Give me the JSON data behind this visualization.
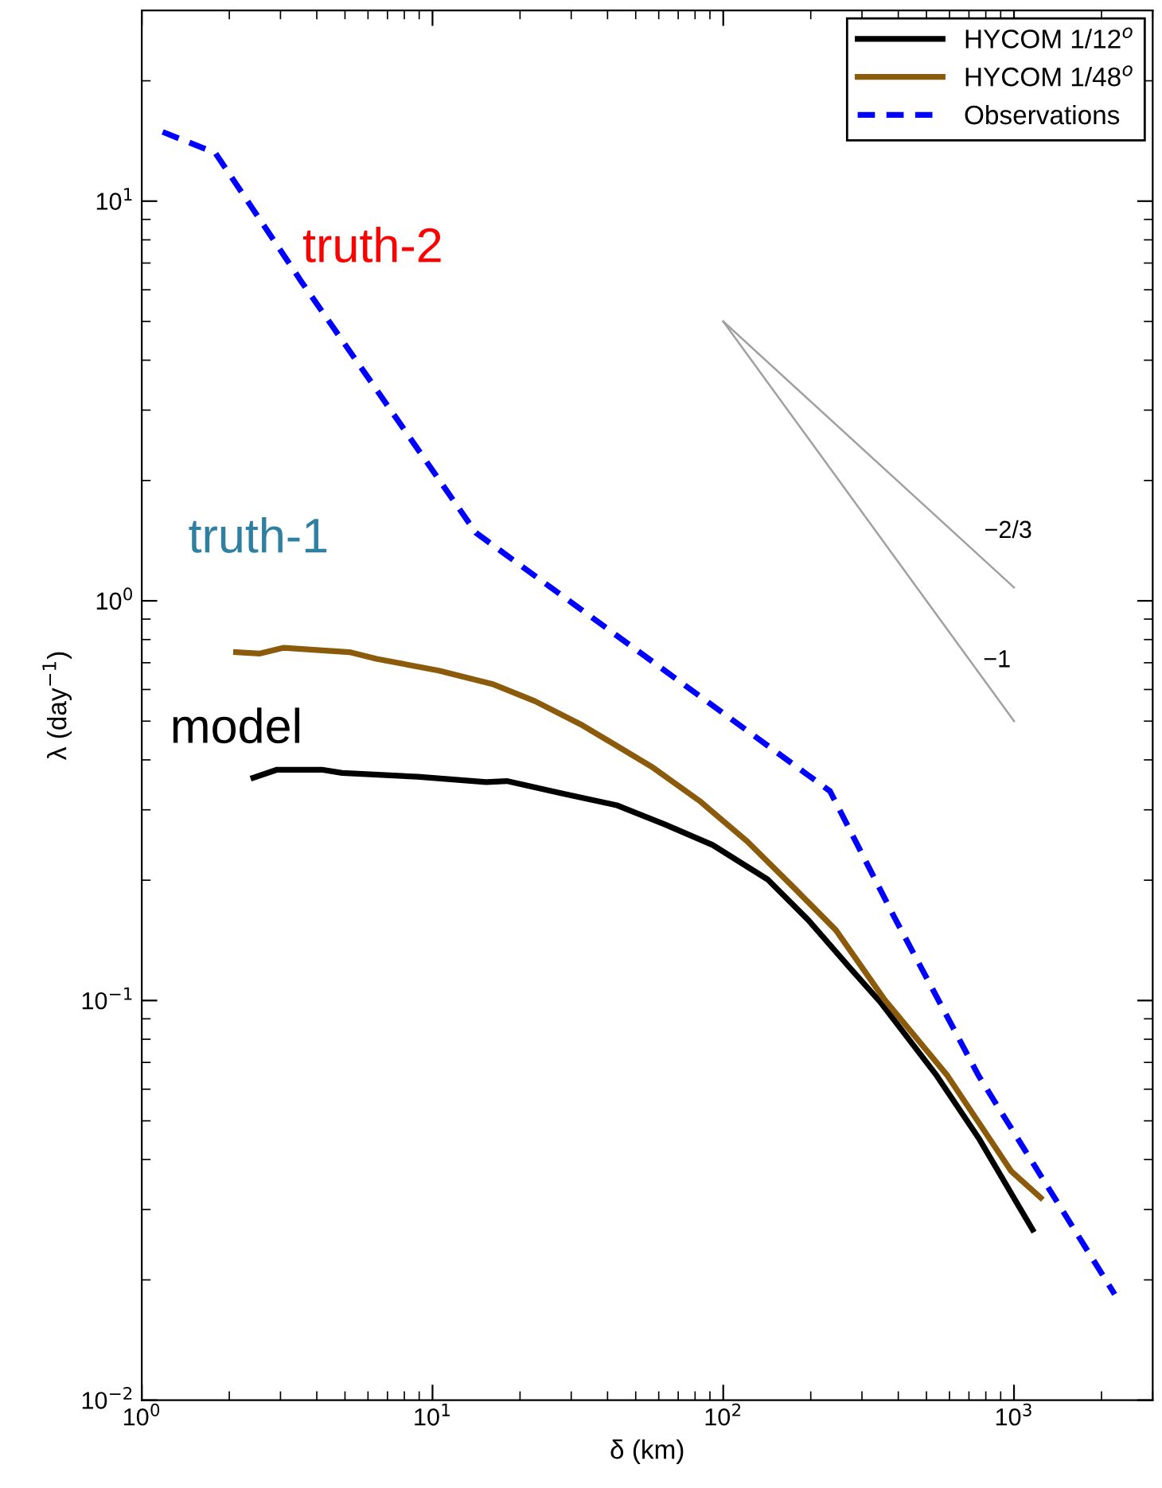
{
  "chart_data": {
    "type": "line",
    "xlabel": "δ (km)",
    "ylabel": "λ (day$^{−1}$)",
    "log": "xy",
    "grid": false,
    "legend": "top right",
    "xlim": [
      1,
      3000
    ],
    "ylim": [
      0.01,
      30
    ],
    "xticks": [
      {
        "value": 1,
        "label": "10$^{0}$"
      },
      {
        "value": 10,
        "label": "10$^{1}$"
      },
      {
        "value": 100,
        "label": "10$^{2}$"
      },
      {
        "value": 1000,
        "label": "10$^{3}$"
      }
    ],
    "yticks": [
      {
        "value": 0.01,
        "label": "10$^{−2}$"
      },
      {
        "value": 0.1,
        "label": "10$^{−1}$"
      },
      {
        "value": 1,
        "label": "10$^{0}$"
      },
      {
        "value": 10,
        "label": "10$^{1}$"
      }
    ],
    "series": [
      {
        "name": "HYCOM 1/12$^{o}$",
        "color": "#000000",
        "line_style": "solid",
        "x": [
          2.42,
          2.92,
          4.16,
          4.89,
          8.89,
          15.3,
          18.0,
          27.8,
          43.0,
          62.8,
          91.9,
          142,
          196,
          272,
          347,
          542,
          760,
          1159
        ],
        "values": [
          0.361,
          0.378,
          0.378,
          0.371,
          0.363,
          0.352,
          0.354,
          0.33,
          0.308,
          0.276,
          0.245,
          0.201,
          0.159,
          0.121,
          0.0991,
          0.0649,
          0.045,
          0.0267
        ]
      },
      {
        "name": "HYCOM 1/48$^{o}$",
        "color": "#8b5a0a",
        "line_style": "solid",
        "x": [
          2.11,
          2.55,
          3.08,
          5.18,
          6.42,
          10.5,
          16.2,
          22.5,
          32.8,
          56.6,
          82.8,
          121,
          177,
          244,
          357,
          590,
          979,
          1236
        ],
        "values": [
          0.744,
          0.738,
          0.763,
          0.744,
          0.716,
          0.669,
          0.618,
          0.561,
          0.488,
          0.385,
          0.316,
          0.25,
          0.19,
          0.15,
          0.101,
          0.0649,
          0.0374,
          0.0321
        ]
      },
      {
        "name": "Observations",
        "color": "#0000ff",
        "line_style": "dashed",
        "x": [
          1.18,
          1.79,
          3.54,
          14.1,
          233,
          387,
          757,
          2220
        ],
        "values": [
          14.9,
          13.2,
          6.29,
          1.48,
          0.334,
          0.162,
          0.0647,
          0.0184
        ]
      },
      {
        "color": "#a0a0a0",
        "line_style": "solid",
        "x": [
          100,
          1000
        ],
        "values": [
          5,
          1.08
        ]
      },
      {
        "color": "#a0a0a0",
        "line_style": "solid",
        "x": [
          100,
          1000
        ],
        "values": [
          5,
          0.5
        ]
      }
    ],
    "annotations": [
      "truth-2",
      "truth-1",
      "model",
      "−2/3",
      "−1"
    ]
  }
}
